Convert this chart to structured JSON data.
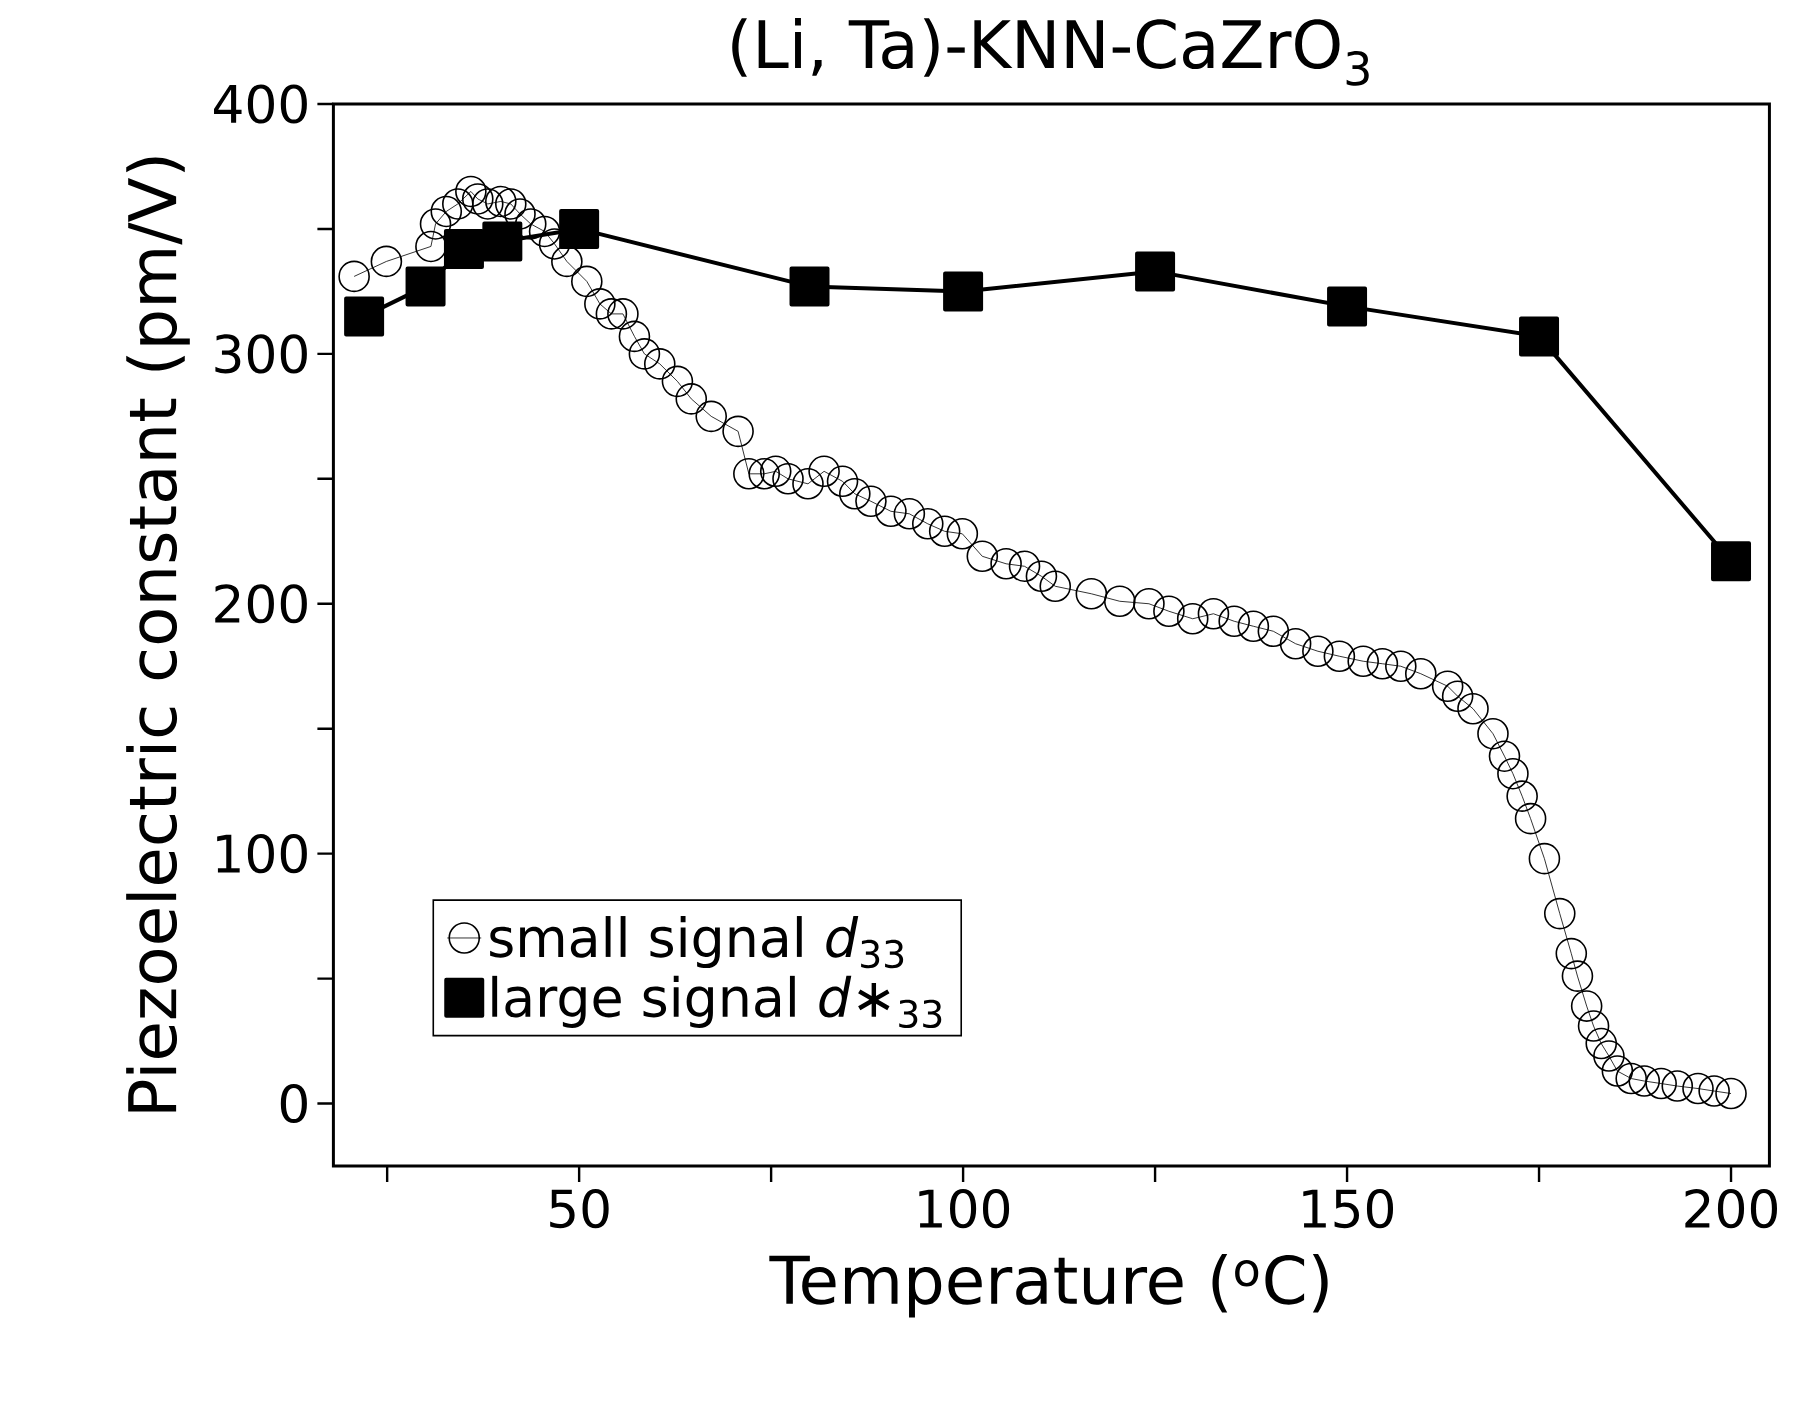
{
  "chart_data": {
    "type": "line",
    "title": "(Li, Ta)-KNN-CaZrO$_{3}$",
    "xlabel": "Temperature ($^{o}$C)",
    "ylabel": "Piezoelectric constant (pm/V)",
    "xlim": [
      18,
      205
    ],
    "ylim": [
      -25,
      400
    ],
    "xticks": [
      {
        "value": 25,
        "label": null
      },
      50,
      {
        "value": 75,
        "label": null
      },
      100,
      {
        "value": 125,
        "label": null
      },
      150,
      {
        "value": 175,
        "label": null
      },
      200
    ],
    "yticks": [
      0,
      {
        "value": 50,
        "label": null
      },
      100,
      {
        "value": 150,
        "label": null
      },
      200,
      {
        "value": 250,
        "label": null
      },
      300,
      {
        "value": 350,
        "label": null
      },
      400
    ],
    "legend": "bottom left",
    "line_style": "solid",
    "series": [
      {
        "name": "small signal *d*$_{33}$",
        "color": "#000000",
        "marker": "circle",
        "x": [
          20.7,
          24.9,
          30.7,
          31.3,
          32.7,
          34.2,
          35.9,
          36.8,
          38.1,
          39.8,
          41.1,
          42.3,
          43.7,
          45.5,
          46.8,
          48.4,
          51,
          52.7,
          54.2,
          55.7,
          57.2,
          58.5,
          60.5,
          62.8,
          64.6,
          67.2,
          70.7,
          72.1,
          74.1,
          75.6,
          77.2,
          79.8,
          81.9,
          84.3,
          85.9,
          88,
          90.6,
          93,
          95.4,
          97.6,
          99.9,
          102.5,
          105.6,
          108,
          110.2,
          112,
          116.7,
          120.4,
          124.2,
          126.8,
          129.9,
          132.6,
          135.3,
          137.8,
          140.4,
          143.3,
          146.2,
          149,
          152.1,
          154.6,
          157,
          159.6,
          163.1,
          164.4,
          166.4,
          169,
          170.5,
          171.6,
          172.8,
          173.9,
          175.7,
          177.7,
          179.2,
          180,
          181.2,
          182.1,
          183.1,
          184.1,
          185.2,
          187,
          188.7,
          190.9,
          193,
          195.7,
          197.8,
          200
        ],
        "values": [
          331,
          337,
          343,
          352,
          357,
          360,
          365,
          362,
          360,
          361,
          360,
          356,
          352,
          349,
          344,
          337,
          329,
          320,
          316,
          316,
          307,
          300,
          296,
          289,
          282,
          275,
          269,
          252,
          252,
          253,
          250,
          248,
          253,
          249,
          244,
          241,
          237,
          236,
          232,
          229,
          228,
          219,
          216,
          215,
          211,
          207,
          204,
          201,
          200,
          197,
          194,
          196,
          193,
          191,
          189,
          184,
          181,
          179,
          177,
          176,
          175,
          172,
          167,
          163,
          158,
          148,
          139,
          132,
          123,
          114,
          98,
          76,
          60,
          51,
          39,
          31,
          24,
          19,
          13,
          10,
          9,
          8,
          7,
          6,
          5,
          4
        ]
      },
      {
        "name": "large signal *d*∗$_{33}$",
        "color": "#000000",
        "marker": "square",
        "x": [
          22,
          30,
          35,
          40,
          50,
          80,
          100,
          125,
          150,
          175,
          200
        ],
        "values": [
          315,
          327,
          342,
          345,
          350,
          327,
          325,
          333,
          319,
          307,
          217
        ]
      }
    ]
  }
}
